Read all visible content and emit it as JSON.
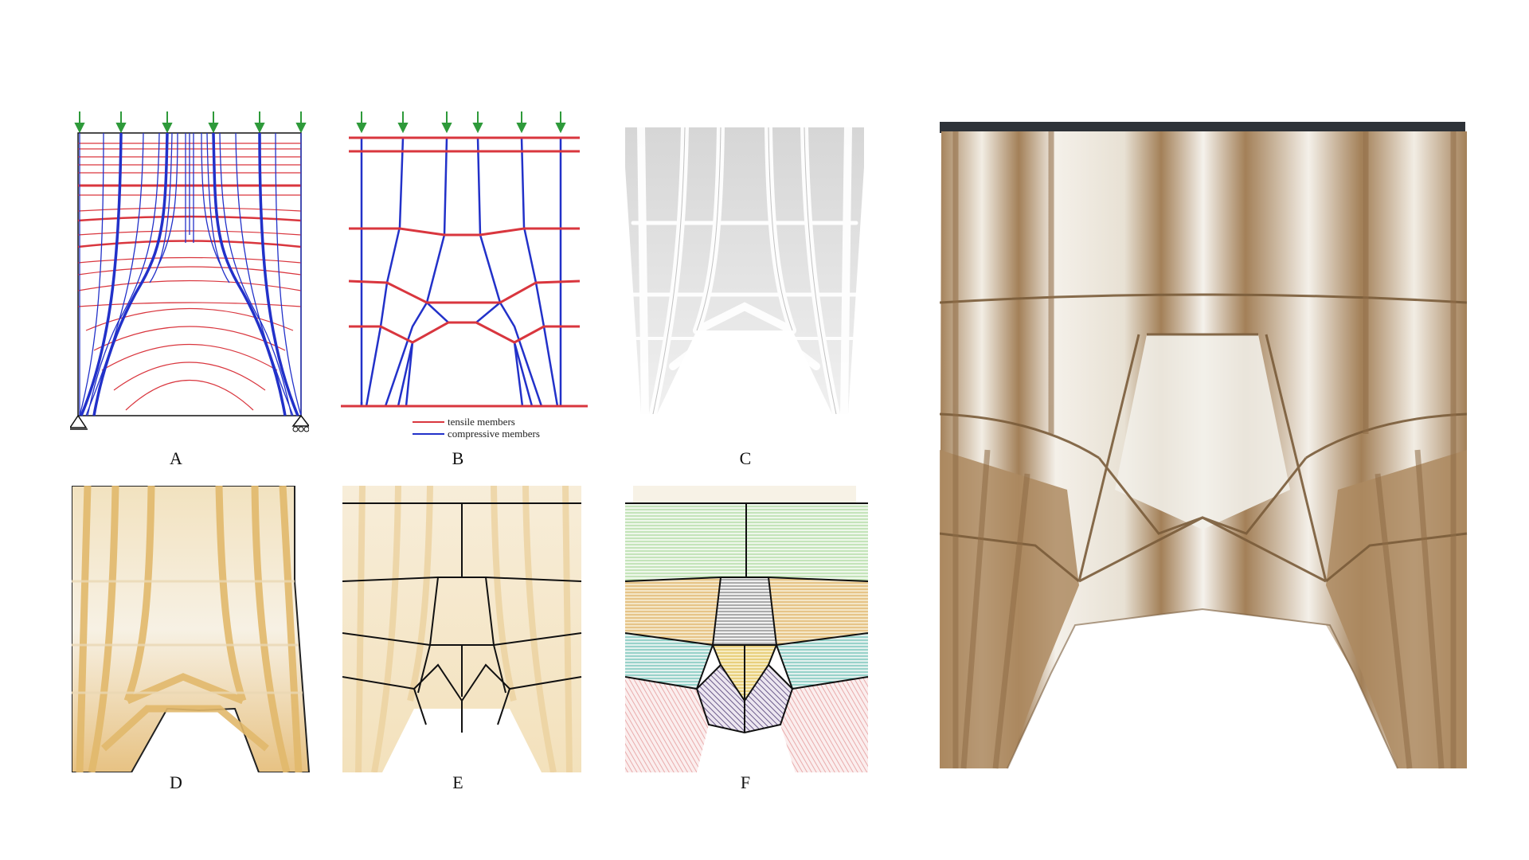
{
  "panels": [
    {
      "id": "A",
      "caption": "A"
    },
    {
      "id": "B",
      "caption": "B"
    },
    {
      "id": "C",
      "caption": "C"
    },
    {
      "id": "D",
      "caption": "D"
    },
    {
      "id": "E",
      "caption": "E"
    },
    {
      "id": "F",
      "caption": "F"
    }
  ],
  "legend": {
    "tensile": "tensile members",
    "compressive": "compressive members"
  },
  "colors": {
    "tensile": "#d9363e",
    "compressive": "#2231c9",
    "load_arrow": "#2e9a3a",
    "clay": "#e8c98c",
    "clay_dark": "#b89062",
    "photo_tan": "#a8865e",
    "photo_light": "#f3f0ea"
  }
}
